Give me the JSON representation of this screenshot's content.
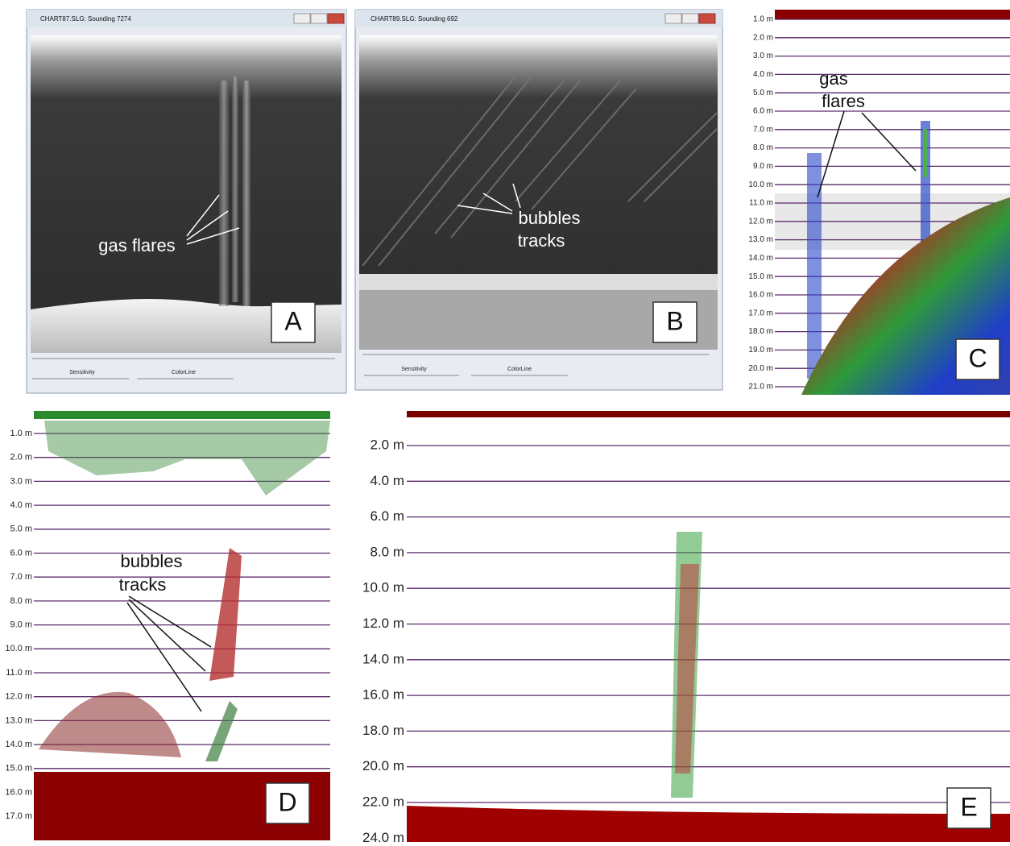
{
  "panels": [
    {
      "letter": "A",
      "window_title": "CHART87.SLG: Sounding 7274",
      "annotation": [
        "gas flares"
      ],
      "controls": [
        "Sensitivity",
        "ColorLine"
      ]
    },
    {
      "letter": "B",
      "window_title": "CHART89.SLG: Sounding 692",
      "annotation": [
        "bubbles",
        "tracks"
      ],
      "controls": [
        "Sensitivity",
        "ColorLine"
      ]
    },
    {
      "letter": "C",
      "annotation": [
        "gas",
        "flares"
      ],
      "depth_labels": [
        "1.0 m",
        "2.0 m",
        "3.0 m",
        "4.0 m",
        "5.0 m",
        "6.0 m",
        "7.0 m",
        "8.0 m",
        "9.0 m",
        "10.0 m",
        "11.0 m",
        "12.0 m",
        "13.0 m",
        "14.0 m",
        "15.0 m",
        "16.0 m",
        "17.0 m",
        "18.0 m",
        "19.0 m",
        "20.0 m",
        "21.0 m"
      ]
    },
    {
      "letter": "D",
      "annotation": [
        "bubbles",
        "tracks"
      ],
      "depth_labels": [
        "1.0 m",
        "2.0 m",
        "3.0 m",
        "4.0 m",
        "5.0 m",
        "6.0 m",
        "7.0 m",
        "8.0 m",
        "9.0 m",
        "10.0 m",
        "11.0 m",
        "12.0 m",
        "13.0 m",
        "14.0 m",
        "15.0 m",
        "16.0 m",
        "17.0 m"
      ]
    },
    {
      "letter": "E",
      "depth_labels": [
        "2.0 m",
        "4.0 m",
        "6.0 m",
        "8.0 m",
        "10.0 m",
        "12.0 m",
        "14.0 m",
        "16.0 m",
        "18.0 m",
        "20.0 m",
        "22.0 m",
        "24.0 m"
      ]
    }
  ]
}
